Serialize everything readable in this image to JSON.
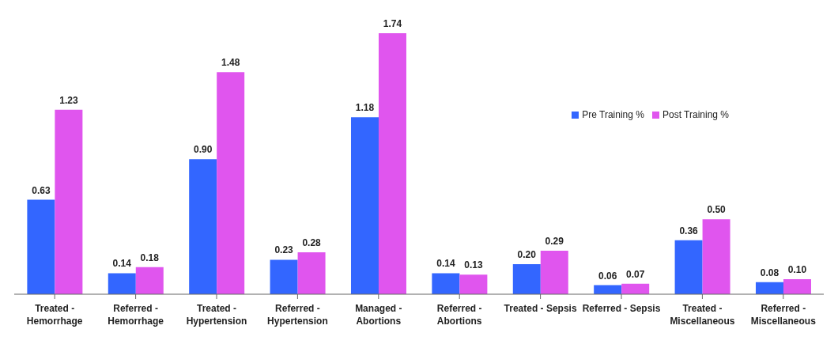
{
  "chart_data": {
    "type": "bar",
    "categories": [
      "Treated -\nHemorrhage",
      "Referred -\nHemorrhage",
      "Treated -\nHypertension",
      "Referred -\nHypertension",
      "Managed -\nAbortions",
      "Referred -\nAbortions",
      "Treated - Sepsis",
      "Referred - Sepsis",
      "Treated -\nMiscellaneous",
      "Referred -\nMiscellaneous"
    ],
    "series": [
      {
        "name": "Pre Training %",
        "color": "#3366ff",
        "values": [
          0.63,
          0.14,
          0.9,
          0.23,
          1.18,
          0.14,
          0.2,
          0.06,
          0.36,
          0.08
        ],
        "value_labels": [
          "0.63",
          "0.14",
          "0.90",
          "0.23",
          "1.18",
          "0.14",
          "0.20",
          "0.06",
          "0.36",
          "0.08"
        ]
      },
      {
        "name": "Post Training %",
        "color": "#e055ee",
        "values": [
          1.23,
          0.18,
          1.48,
          0.28,
          1.74,
          0.13,
          0.29,
          0.07,
          0.5,
          0.1
        ],
        "value_labels": [
          "1.23",
          "0.18",
          "1.48",
          "0.28",
          "1.74",
          "0.13",
          "0.29",
          "0.07",
          "0.50",
          "0.10"
        ]
      }
    ],
    "legend": "top right"
  }
}
